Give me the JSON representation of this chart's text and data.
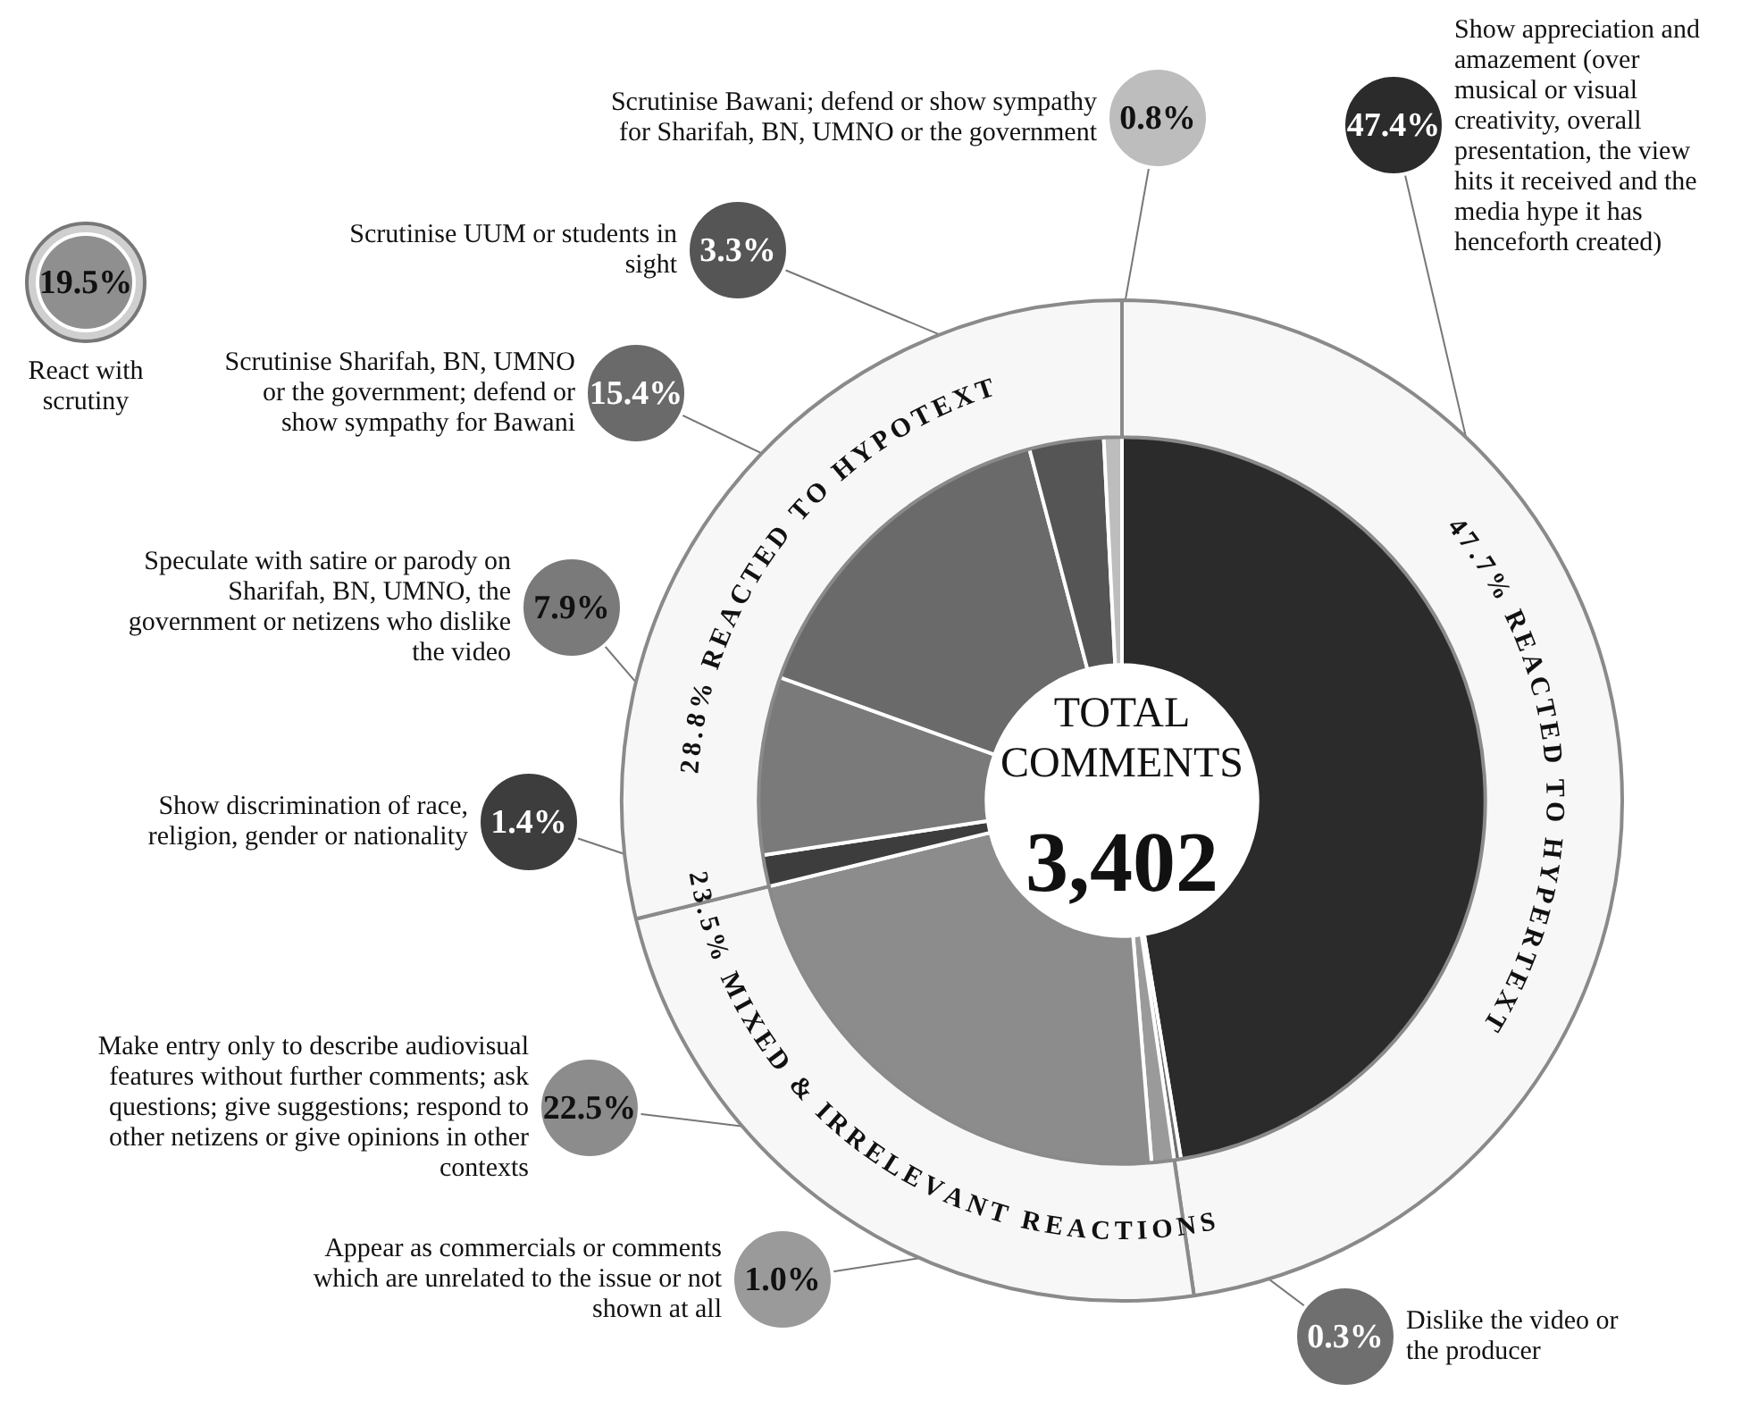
{
  "chart_data": [
    {
      "type": "donut",
      "categories": [
        "REACTED TO HYPERTEXT",
        "MIXED & IRRELEVANT REACTIONS",
        "REACTED TO HYPOTEXT"
      ],
      "values": [
        47.7,
        23.5,
        28.8
      ],
      "value_labels": [
        "47.7%",
        "23.5%",
        "28.8%"
      ],
      "colors": [
        "#f7f7f7",
        "#f7f7f7",
        "#f7f7f7"
      ],
      "legend": false
    },
    {
      "type": "donut",
      "categories": [
        "Show appreciation and amazement (over musical or visual creativity, overall presentation, the view hits it received and the media hype it has henceforth created)",
        "Dislike the video or the producer",
        "Appear as commercials or comments which are unrelated to the issue or not shown at all",
        "Make entry only to describe audiovisual features without further comments; ask questions; give suggestions; respond to other netizens or give opinions in other contexts",
        "Show discrimination of race, religion, gender or nationality",
        "Speculate with satire or parody on Sharifah, BN, UMNO, the government or netizens who dislike the video",
        "Scrutinise Sharifah, BN, UMNO or the government; defend or show sympathy for Bawani",
        "Scrutinise UUM or students in sight",
        "Scrutinise Bawani; defend or show sympathy for Sharifah, BN, UMNO or the government"
      ],
      "values": [
        47.4,
        0.3,
        1.0,
        22.5,
        1.4,
        7.9,
        15.4,
        3.3,
        0.8
      ],
      "value_labels": [
        "47.4%",
        "0.3%",
        "1.0%",
        "22.5%",
        "1.4%",
        "7.9%",
        "15.4%",
        "3.3%",
        "0.8%"
      ],
      "colors": [
        "#2b2b2b",
        "#6f6f6f",
        "#9a9a9a",
        "#8c8c8c",
        "#3d3d3d",
        "#7a7a7a",
        "#6a6a6a",
        "#555555",
        "#bdbdbd"
      ],
      "annotations": [
        "TOTAL COMMENTS",
        "3,402",
        "19.5%",
        "React with scrutiny"
      ],
      "legend": false
    }
  ]
}
